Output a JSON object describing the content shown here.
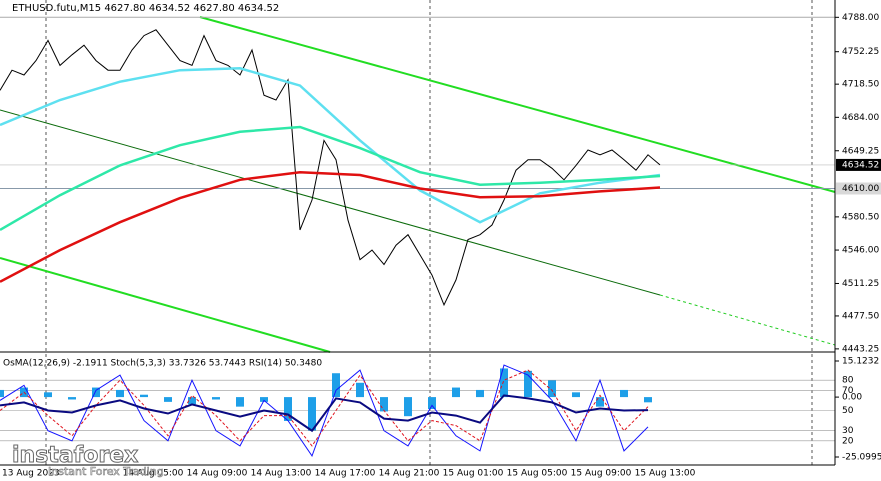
{
  "chart_data": [
    {
      "type": "line",
      "title": "ETHUSD.futu,M15  4627.80 4634.52 4627.80 4634.52",
      "ylim": [
        4440,
        4806
      ],
      "yticks": [
        {
          "value": 4788,
          "label": "4788.00"
        },
        {
          "value": 4752.25,
          "label": "4752.25"
        },
        {
          "value": 4718.5,
          "label": "4718.50"
        },
        {
          "value": 4684,
          "label": "4684.00"
        },
        {
          "value": 4649.25,
          "label": "4649.25"
        },
        {
          "value": 4580.5,
          "label": "4580.50"
        },
        {
          "value": 4546,
          "label": "4546.00"
        },
        {
          "value": 4511.25,
          "label": "4511.25"
        },
        {
          "value": 4477.5,
          "label": "4477.50"
        },
        {
          "value": 4443.25,
          "label": "4443.25"
        }
      ],
      "current_price": {
        "value": 4634.52,
        "label": "4634.52"
      },
      "level": {
        "value": 4610,
        "label": "4610.00"
      },
      "xlabels": [
        "13 Aug 2023",
        "14 Aug 05:00",
        "14 Aug 09:00",
        "14 Aug 13:00",
        "14 Aug 17:00",
        "14 Aug 21:00",
        "15 Aug 01:00",
        "15 Aug 05:00",
        "15 Aug 09:00",
        "15 Aug 13:00"
      ],
      "series": [
        {
          "color": "#000000",
          "values": [
            4712,
            4733,
            4728,
            4743,
            4764,
            4738,
            4749,
            4759,
            4743,
            4733,
            4733,
            4754,
            4769,
            4775,
            4759,
            4743,
            4738,
            4769,
            4743,
            4738,
            4728,
            4754,
            4707,
            4702,
            4723,
            4567,
            4598,
            4660,
            4640,
            4577,
            4536,
            4546,
            4531,
            4551,
            4562,
            4541,
            4520,
            4489,
            4515,
            4557,
            4562,
            4572,
            4598,
            4629,
            4640,
            4640,
            4631,
            4619,
            4634,
            4650,
            4645,
            4650,
            4640,
            4629,
            4645,
            4634.52
          ]
        },
        {
          "color": "#5ee0f0",
          "values": [
            4676,
            4702,
            4721,
            4733,
            4735,
            4717,
            4660,
            4608,
            4575,
            4605,
            4616,
            4624
          ]
        },
        {
          "color": "#2ee8a8",
          "values": [
            4567,
            4603,
            4634,
            4655,
            4669,
            4674,
            4652,
            4627,
            4614,
            4616,
            4619,
            4623
          ]
        },
        {
          "color": "#e01010",
          "values": [
            4513,
            4546,
            4575,
            4600,
            4619,
            4627,
            4624,
            4610,
            4601,
            4602,
            4607,
            4611
          ]
        }
      ]
    },
    {
      "type": "bar",
      "title": "OsMA(12,26,9) -2.1911  Stoch(5,3,3) 33.7326 53.7443  RSI(14) 50.3480",
      "ylim": [
        0,
        100
      ],
      "yticks": [
        20,
        30,
        50,
        70,
        80
      ],
      "y2lim": [
        -25.0995,
        15.1232
      ],
      "y2ticks": [
        -25.0995,
        {
          "value": 0,
          "label": "0.00"
        },
        15.1232
      ],
      "series": [
        {
          "color": "#1e9fe8",
          "axis": "y2",
          "style": "histogram",
          "values": [
            3,
            4,
            2,
            -1,
            4,
            3,
            1,
            -2,
            -3,
            -1,
            -4,
            -2,
            -10,
            -14,
            10,
            6,
            -6,
            -8,
            -5,
            4,
            3,
            12,
            11,
            7,
            2,
            -4,
            3,
            -2.1911
          ]
        },
        {
          "color": "#1414ff",
          "style": "line",
          "values": [
            60,
            75,
            30,
            20,
            70,
            85,
            40,
            20,
            80,
            30,
            15,
            60,
            40,
            5,
            70,
            90,
            30,
            15,
            55,
            25,
            10,
            95,
            85,
            60,
            20,
            80,
            10,
            33.7326
          ]
        },
        {
          "color": "#e0141e",
          "style": "dashed",
          "values": [
            50,
            68,
            45,
            25,
            55,
            80,
            55,
            25,
            65,
            45,
            20,
            45,
            45,
            15,
            50,
            85,
            50,
            20,
            40,
            35,
            20,
            80,
            90,
            70,
            30,
            65,
            30,
            53.7443
          ]
        },
        {
          "color": "#0a0a80",
          "style": "thick",
          "values": [
            55,
            58,
            50,
            48,
            55,
            60,
            52,
            47,
            56,
            50,
            44,
            50,
            46,
            30,
            62,
            58,
            42,
            40,
            48,
            45,
            38,
            65,
            62,
            58,
            48,
            52,
            50,
            50.348
          ]
        }
      ]
    }
  ],
  "logo": {
    "name": "instaforex",
    "tagline": "Instant Forex Trading"
  }
}
